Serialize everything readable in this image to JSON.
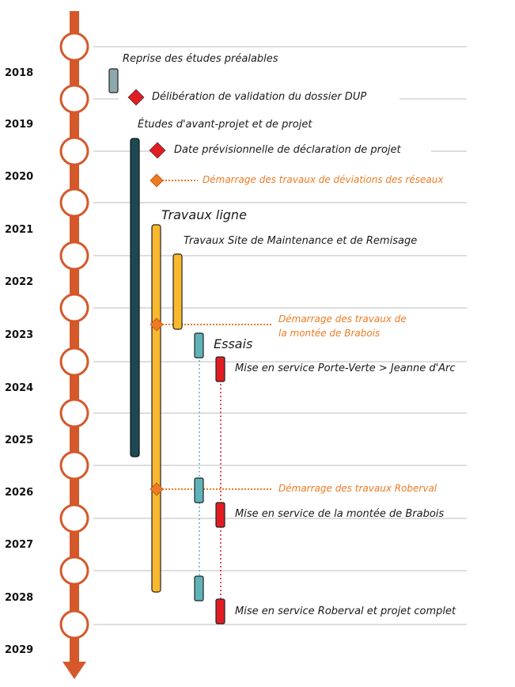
{
  "years": [
    "2018",
    "2019",
    "2020",
    "2021",
    "2022",
    "2023",
    "2024",
    "2025",
    "2026",
    "2027",
    "2028",
    "2029"
  ],
  "colors": {
    "axis": "#d4582a",
    "dark_teal": "#1d4a52",
    "yellow": "#f9b92e",
    "light_teal": "#5fb3b8",
    "grey_teal": "#8fa9ab",
    "red": "#e11d24",
    "orange": "#ee7a22",
    "rule": "#bdbdbd"
  },
  "labels": {
    "reprise": "Reprise des études préalables",
    "deliberation": "Délibération de validation du dossier DUP",
    "etudes": "Études d'avant-projet et de projet",
    "declaration": "Date prévisionnelle de déclaration de projet",
    "demarrage_reseaux": "Démarrage des travaux de déviations des réseaux",
    "travaux_ligne": "Travaux ligne",
    "travaux_smr": "Travaux Site de Maintenance et de Remisage",
    "demarrage_brabois_1": "Démarrage des travaux de",
    "demarrage_brabois_2": "la montée de Brabois",
    "essais": "Essais",
    "mes_porte_verte": "Mise en service Porte-Verte > Jeanne d'Arc",
    "demarrage_roberval": "Démarrage des travaux Roberval",
    "mes_brabois": "Mise en service de la montée de Brabois",
    "mes_roberval": "Mise en service Roberval et projet complet"
  }
}
